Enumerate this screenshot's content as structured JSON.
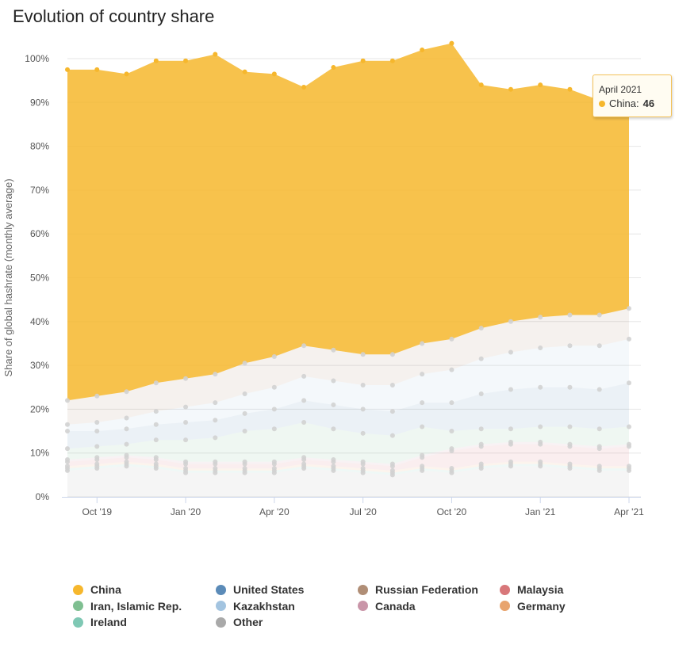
{
  "page": {
    "title": "Evolution of country share"
  },
  "tooltip": {
    "date": "April 2021",
    "series": "China",
    "value": "46",
    "colon": ":"
  },
  "chart_data": {
    "type": "area",
    "stacked": true,
    "ylabel": "Share of global hashrate (monthly average)",
    "ylim": [
      0,
      100
    ],
    "y_tick_labels": [
      "0%",
      "10%",
      "20%",
      "30%",
      "40%",
      "50%",
      "60%",
      "70%",
      "80%",
      "90%",
      "100%"
    ],
    "x": [
      "2019-09",
      "2019-10",
      "2019-11",
      "2019-12",
      "2020-01",
      "2020-02",
      "2020-03",
      "2020-04",
      "2020-05",
      "2020-06",
      "2020-07",
      "2020-08",
      "2020-09",
      "2020-10",
      "2020-11",
      "2020-12",
      "2021-01",
      "2021-02",
      "2021-03",
      "2021-04"
    ],
    "x_tick_labels": [
      {
        "label": "Oct '19",
        "x": "2019-10"
      },
      {
        "label": "Jan '20",
        "x": "2020-01"
      },
      {
        "label": "Apr '20",
        "x": "2020-04"
      },
      {
        "label": "Jul '20",
        "x": "2020-07"
      },
      {
        "label": "Oct '20",
        "x": "2020-10"
      },
      {
        "label": "Jan '21",
        "x": "2021-01"
      },
      {
        "label": "Apr '21",
        "x": "2021-04"
      }
    ],
    "grid": true,
    "legend_position": "bottom",
    "series": [
      {
        "name": "Other",
        "color": "#a9a9a9",
        "values": [
          6.0,
          6.5,
          7.0,
          6.5,
          5.5,
          5.5,
          5.5,
          5.5,
          6.5,
          6.0,
          5.5,
          5.0,
          6.0,
          5.5,
          6.5,
          7.0,
          7.0,
          6.5,
          6.0,
          6.0
        ]
      },
      {
        "name": "Ireland",
        "color": "#7fc8b4",
        "values": [
          0.5,
          0.5,
          0.5,
          0.5,
          0.5,
          0.5,
          0.5,
          0.5,
          0.5,
          0.5,
          0.5,
          0.5,
          0.5,
          0.5,
          0.5,
          0.5,
          0.5,
          0.5,
          0.5,
          0.5
        ]
      },
      {
        "name": "Germany",
        "color": "#e8a46e",
        "values": [
          0.5,
          0.5,
          0.5,
          0.5,
          0.5,
          0.5,
          0.5,
          0.5,
          0.5,
          0.5,
          0.5,
          0.5,
          0.5,
          0.5,
          0.5,
          0.5,
          0.5,
          0.5,
          0.5,
          0.5
        ]
      },
      {
        "name": "Malaysia",
        "color": "#d8777a",
        "values": [
          1.0,
          1.0,
          1.0,
          1.0,
          1.0,
          1.0,
          1.0,
          1.0,
          1.0,
          1.0,
          1.0,
          1.0,
          2.0,
          4.0,
          4.0,
          4.0,
          4.0,
          4.0,
          4.0,
          4.5
        ]
      },
      {
        "name": "Canada",
        "color": "#c995a8",
        "values": [
          0.5,
          0.5,
          0.5,
          0.5,
          0.5,
          0.5,
          0.5,
          0.5,
          0.5,
          0.5,
          0.5,
          0.5,
          0.5,
          0.5,
          0.5,
          0.5,
          0.5,
          0.5,
          0.5,
          0.5
        ]
      },
      {
        "name": "Iran, Islamic Rep.",
        "color": "#7fbf91",
        "values": [
          2.5,
          2.5,
          2.5,
          4.0,
          5.0,
          5.5,
          7.0,
          7.5,
          8.0,
          7.0,
          6.5,
          6.5,
          6.5,
          4.0,
          3.5,
          3.0,
          3.5,
          4.0,
          4.0,
          4.0
        ]
      },
      {
        "name": "United States",
        "color": "#5b8bb8",
        "values": [
          4.0,
          3.5,
          3.5,
          3.5,
          4.0,
          4.0,
          4.0,
          4.5,
          5.0,
          5.5,
          5.5,
          5.5,
          5.5,
          6.5,
          8.0,
          9.0,
          9.0,
          9.0,
          9.0,
          10.0
        ]
      },
      {
        "name": "Kazakhstan",
        "color": "#a3c4e0",
        "values": [
          1.5,
          2.0,
          2.5,
          3.0,
          3.5,
          4.0,
          4.5,
          5.0,
          5.5,
          5.5,
          5.5,
          6.0,
          6.5,
          7.5,
          8.0,
          8.5,
          9.0,
          9.5,
          10.0,
          10.0
        ]
      },
      {
        "name": "Russian Federation",
        "color": "#b08e76",
        "values": [
          5.5,
          6.0,
          6.0,
          6.5,
          6.5,
          6.5,
          7.0,
          7.0,
          7.0,
          7.0,
          7.0,
          7.0,
          7.0,
          7.0,
          7.0,
          7.0,
          7.0,
          7.0,
          7.0,
          7.0
        ]
      },
      {
        "name": "China",
        "color": "#f6b72d",
        "values": [
          75.5,
          74.5,
          72.5,
          73.5,
          72.5,
          73.0,
          66.5,
          64.5,
          59.0,
          64.5,
          67.0,
          67.0,
          67.0,
          67.5,
          55.5,
          53.0,
          53.0,
          51.5,
          49.0,
          46.0
        ]
      }
    ]
  },
  "legend": [
    {
      "label": "China",
      "color": "#f6b72d"
    },
    {
      "label": "United States",
      "color": "#5b8bb8"
    },
    {
      "label": "Russian Federation",
      "color": "#b08e76"
    },
    {
      "label": "Malaysia",
      "color": "#d8777a"
    },
    {
      "label": "Iran, Islamic Rep.",
      "color": "#7fbf91"
    },
    {
      "label": "Kazakhstan",
      "color": "#a3c4e0"
    },
    {
      "label": "Canada",
      "color": "#c995a8"
    },
    {
      "label": "Germany",
      "color": "#e8a46e"
    },
    {
      "label": "Ireland",
      "color": "#7fc8b4"
    },
    {
      "label": "Other",
      "color": "#a9a9a9"
    }
  ]
}
